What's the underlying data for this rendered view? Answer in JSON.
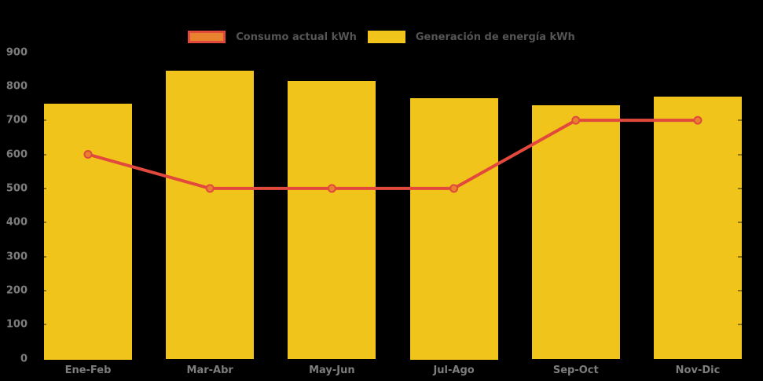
{
  "chart_data": {
    "type": "bar",
    "combo": "bar+line",
    "title": "",
    "categories": [
      "Ene-Feb",
      "Mar-Abr",
      "May-Jun",
      "Jul-Ago",
      "Sep-Oct",
      "Nov-Dic"
    ],
    "series": [
      {
        "name": "Consumo actual kWh",
        "type": "line",
        "values": [
          600,
          500,
          500,
          500,
          700,
          700
        ],
        "color": "#E2493D",
        "marker_fill": "#E8822E"
      },
      {
        "name": "Generación de energía kWh",
        "type": "bar",
        "values": [
          750,
          845,
          815,
          765,
          745,
          770
        ],
        "color": "#F0C41B"
      }
    ],
    "xlabel": "",
    "ylabel": "",
    "ylim": [
      0,
      900
    ],
    "ytick_step": 100,
    "ytick_labels": [
      "0",
      "100",
      "200",
      "300",
      "400",
      "500",
      "600",
      "700",
      "800",
      "900"
    ],
    "grid": false,
    "legend_position": "top-center",
    "background_color": "#000000",
    "axis_label_color": "#7D7D7D",
    "legend_text_color": "#555555"
  }
}
